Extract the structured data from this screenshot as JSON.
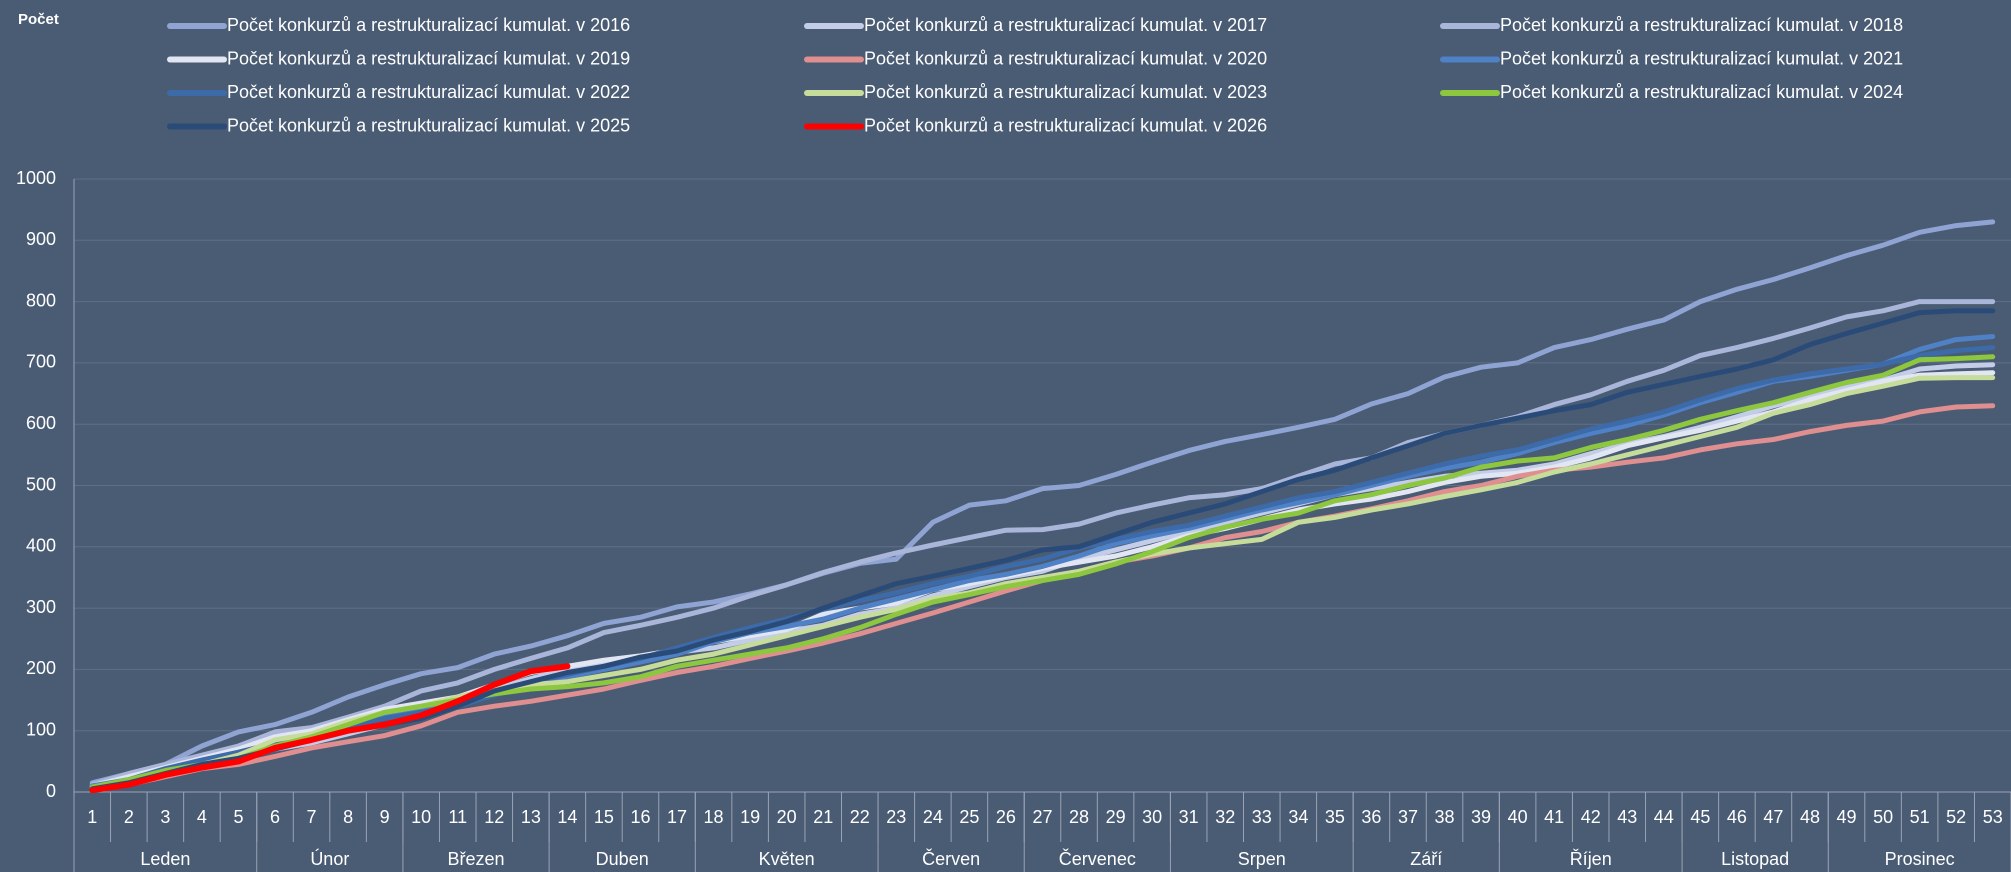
{
  "chart_data": {
    "type": "line",
    "y_label": "Počet",
    "categories": [
      1,
      2,
      3,
      4,
      5,
      6,
      7,
      8,
      9,
      10,
      11,
      12,
      13,
      14,
      15,
      16,
      17,
      18,
      19,
      20,
      21,
      22,
      23,
      24,
      25,
      26,
      27,
      28,
      29,
      30,
      31,
      32,
      33,
      34,
      35,
      36,
      37,
      38,
      39,
      40,
      41,
      42,
      43,
      44,
      45,
      46,
      47,
      48,
      49,
      50,
      51,
      52,
      53
    ],
    "month_groups": [
      {
        "label": "Leden",
        "from": 1,
        "to": 5
      },
      {
        "label": "Únor",
        "from": 6,
        "to": 9
      },
      {
        "label": "Březen",
        "from": 10,
        "to": 13
      },
      {
        "label": "Duben",
        "from": 14,
        "to": 17
      },
      {
        "label": "Květen",
        "from": 18,
        "to": 22
      },
      {
        "label": "Červen",
        "from": 23,
        "to": 26
      },
      {
        "label": "Červenec",
        "from": 27,
        "to": 30
      },
      {
        "label": "Srpen",
        "from": 31,
        "to": 35
      },
      {
        "label": "Září",
        "from": 36,
        "to": 39
      },
      {
        "label": "Říjen",
        "from": 40,
        "to": 44
      },
      {
        "label": "Listopad",
        "from": 45,
        "to": 48
      },
      {
        "label": "Prosinec",
        "from": 49,
        "to": 53
      }
    ],
    "ylim": [
      0,
      1000
    ],
    "yticks": [
      0,
      100,
      200,
      300,
      400,
      500,
      600,
      700,
      800,
      900,
      1000
    ],
    "grid": true,
    "series": [
      {
        "name": "Počet konkurzů a restrukturalizací kumulat. v 2016",
        "color": "#8fa4d2",
        "values": [
          15,
          30,
          45,
          75,
          98,
          110,
          130,
          155,
          175,
          193,
          203,
          225,
          238,
          255,
          275,
          285,
          302,
          310,
          323,
          338,
          357,
          373,
          380,
          440,
          468,
          475,
          495,
          500,
          518,
          538,
          557,
          572,
          583,
          595,
          608,
          633,
          650,
          677,
          693,
          700,
          725,
          738,
          755,
          770,
          800,
          820,
          836,
          855,
          875,
          892,
          913,
          924,
          930
        ]
      },
      {
        "name": "Počet konkurzů a restrukturalizací kumulat. v 2017",
        "color": "#c3cde8",
        "values": [
          8,
          18,
          30,
          40,
          55,
          70,
          80,
          95,
          110,
          125,
          145,
          168,
          185,
          200,
          212,
          220,
          228,
          235,
          248,
          262,
          272,
          290,
          300,
          320,
          335,
          350,
          360,
          380,
          395,
          410,
          425,
          440,
          455,
          470,
          485,
          495,
          505,
          515,
          520,
          525,
          535,
          552,
          568,
          580,
          595,
          612,
          630,
          645,
          660,
          672,
          690,
          695,
          697
        ]
      },
      {
        "name": "Počet konkurzů a restrukturalizací kumulat. v 2018",
        "color": "#a9b6da",
        "values": [
          12,
          30,
          45,
          60,
          75,
          98,
          105,
          122,
          140,
          165,
          178,
          200,
          218,
          235,
          260,
          272,
          285,
          300,
          320,
          338,
          358,
          375,
          390,
          403,
          415,
          427,
          428,
          437,
          455,
          468,
          480,
          485,
          495,
          515,
          535,
          545,
          570,
          585,
          598,
          612,
          632,
          648,
          670,
          688,
          712,
          725,
          740,
          757,
          775,
          785,
          800,
          800,
          800
        ]
      },
      {
        "name": "Počet konkurzů a restrukturalizací kumulat. v 2019",
        "color": "#e2e6f2",
        "values": [
          10,
          25,
          40,
          55,
          70,
          90,
          100,
          118,
          135,
          145,
          155,
          175,
          195,
          205,
          215,
          222,
          232,
          245,
          255,
          265,
          290,
          300,
          308,
          330,
          340,
          352,
          365,
          375,
          385,
          400,
          418,
          430,
          445,
          460,
          470,
          478,
          490,
          505,
          515,
          520,
          530,
          545,
          565,
          578,
          590,
          605,
          620,
          640,
          655,
          670,
          680,
          682,
          684
        ]
      },
      {
        "name": "Počet konkurzů a restrukturalizací kumulat. v 2020",
        "color": "#df8f8f",
        "values": [
          3,
          12,
          25,
          38,
          45,
          58,
          72,
          82,
          92,
          108,
          130,
          140,
          148,
          158,
          168,
          182,
          195,
          205,
          218,
          230,
          243,
          258,
          275,
          292,
          310,
          328,
          345,
          360,
          375,
          385,
          398,
          415,
          425,
          440,
          450,
          462,
          475,
          490,
          500,
          515,
          525,
          530,
          538,
          545,
          558,
          568,
          575,
          588,
          598,
          605,
          620,
          628,
          630
        ]
      },
      {
        "name": "Počet konkurzů a restrukturalizací kumulat. v 2021",
        "color": "#4f81c7",
        "values": [
          10,
          20,
          35,
          48,
          60,
          75,
          88,
          110,
          125,
          135,
          145,
          158,
          175,
          188,
          200,
          212,
          225,
          245,
          260,
          270,
          282,
          300,
          315,
          330,
          345,
          355,
          368,
          385,
          405,
          418,
          430,
          445,
          460,
          472,
          485,
          500,
          515,
          528,
          538,
          552,
          570,
          585,
          598,
          615,
          635,
          652,
          670,
          678,
          688,
          698,
          722,
          738,
          743
        ]
      },
      {
        "name": "Počet konkurzů a restrukturalizací kumulat. v 2022",
        "color": "#3d6aa8",
        "values": [
          8,
          20,
          38,
          52,
          65,
          80,
          92,
          108,
          120,
          130,
          140,
          158,
          178,
          192,
          205,
          218,
          235,
          252,
          268,
          282,
          298,
          312,
          325,
          340,
          352,
          368,
          380,
          398,
          412,
          425,
          435,
          450,
          465,
          480,
          490,
          505,
          520,
          535,
          548,
          558,
          575,
          592,
          605,
          620,
          640,
          658,
          672,
          682,
          690,
          698,
          712,
          720,
          725
        ]
      },
      {
        "name": "Počet konkurzů a restrukturalizací kumulat. v 2023",
        "color": "#c6dc9b",
        "values": [
          5,
          15,
          30,
          45,
          60,
          85,
          95,
          115,
          130,
          140,
          155,
          168,
          175,
          180,
          190,
          200,
          215,
          225,
          240,
          255,
          270,
          285,
          298,
          315,
          325,
          340,
          350,
          360,
          375,
          388,
          398,
          405,
          412,
          440,
          448,
          460,
          470,
          482,
          493,
          505,
          522,
          535,
          550,
          565,
          580,
          595,
          618,
          632,
          650,
          662,
          675,
          676,
          676
        ]
      },
      {
        "name": "Počet konkurzů a restrukturalizací kumulat. v 2024",
        "color": "#8dc63f",
        "values": [
          8,
          20,
          35,
          45,
          55,
          75,
          90,
          110,
          130,
          140,
          150,
          160,
          168,
          172,
          178,
          188,
          205,
          215,
          225,
          235,
          250,
          268,
          290,
          310,
          322,
          335,
          345,
          355,
          372,
          392,
          415,
          432,
          445,
          455,
          475,
          485,
          500,
          512,
          530,
          540,
          545,
          562,
          575,
          590,
          608,
          622,
          635,
          652,
          668,
          680,
          705,
          707,
          710
        ]
      },
      {
        "name": "Počet konkurzů a restrukturalizací kumulat. v 2025",
        "color": "#2a4b78",
        "values": [
          5,
          15,
          30,
          45,
          55,
          70,
          85,
          100,
          110,
          120,
          140,
          165,
          180,
          195,
          205,
          220,
          230,
          248,
          262,
          278,
          300,
          320,
          340,
          352,
          365,
          378,
          395,
          400,
          420,
          440,
          455,
          470,
          490,
          510,
          525,
          545,
          565,
          585,
          598,
          610,
          622,
          632,
          652,
          665,
          678,
          690,
          705,
          730,
          748,
          765,
          782,
          785,
          785
        ]
      },
      {
        "name": "Počet konkurzů a restrukturalizací kumulat. v 2026",
        "color": "#ff0000",
        "values": [
          3,
          12,
          28,
          40,
          50,
          72,
          85,
          100,
          110,
          125,
          148,
          175,
          197,
          205,
          null,
          null,
          null,
          null,
          null,
          null,
          null,
          null,
          null,
          null,
          null,
          null,
          null,
          null,
          null,
          null,
          null,
          null,
          null,
          null,
          null,
          null,
          null,
          null,
          null,
          null,
          null,
          null,
          null,
          null,
          null,
          null,
          null,
          null,
          null,
          null,
          null,
          null,
          null
        ]
      }
    ]
  }
}
